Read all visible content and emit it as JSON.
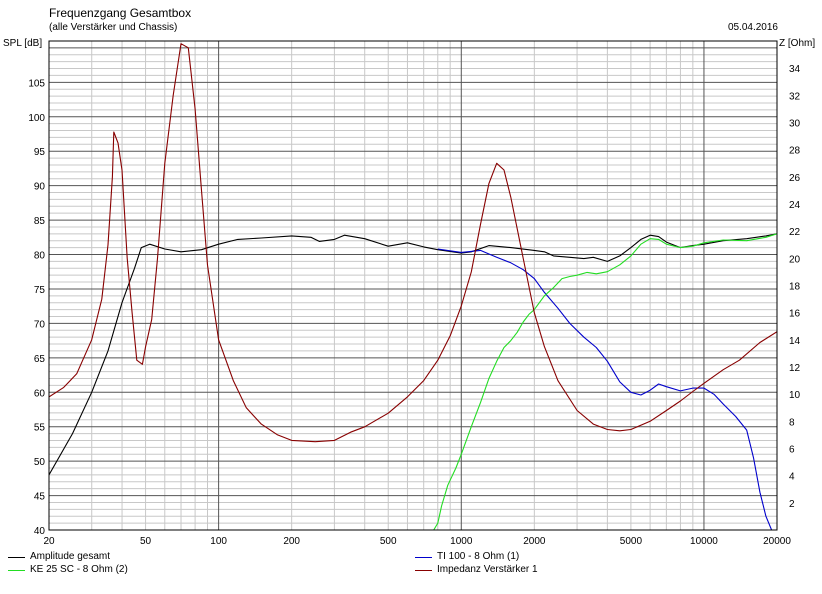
{
  "header": {
    "title": "Frequenzgang Gesamtbox",
    "subtitle": "(alle Verstärker und Chassis)",
    "date": "05.04.2016",
    "ylabel_left": "SPL [dB]",
    "ylabel_right": "Z [Ohm]"
  },
  "chart_data": {
    "type": "line",
    "x_scale": "log",
    "xlim": [
      20,
      20000
    ],
    "ylim_left": [
      40,
      111
    ],
    "ylim_right": [
      0,
      36
    ],
    "x_ticks": [
      20,
      50,
      100,
      200,
      500,
      1000,
      2000,
      5000,
      10000,
      20000
    ],
    "x_tick_labels": [
      "20",
      "50",
      "100",
      "200",
      "500",
      "1000",
      "2000",
      "5000",
      "10000",
      "20000"
    ],
    "y_left_ticks": [
      40,
      45,
      50,
      55,
      60,
      65,
      70,
      75,
      80,
      85,
      90,
      95,
      100,
      105
    ],
    "y_left_tick_labels": [
      "40",
      "45",
      "50",
      "55",
      "60",
      "65",
      "70",
      "75",
      "80",
      "85",
      "90",
      "95",
      "100",
      "105"
    ],
    "y_right_ticks": [
      2,
      4,
      6,
      8,
      10,
      12,
      14,
      16,
      18,
      20,
      22,
      24,
      26,
      28,
      30,
      32,
      34
    ],
    "y_right_tick_labels": [
      "2",
      "4",
      "6",
      "8",
      "10",
      "12",
      "14",
      "16",
      "18",
      "20",
      "22",
      "24",
      "26",
      "28",
      "30",
      "32",
      "34"
    ],
    "grid": true,
    "legend_position": "bottom",
    "series": [
      {
        "name": "Amplitude gesamt",
        "color": "#000000",
        "axis": "left",
        "points": [
          [
            20,
            48
          ],
          [
            25,
            54
          ],
          [
            30,
            60
          ],
          [
            35,
            66
          ],
          [
            40,
            73
          ],
          [
            45,
            78
          ],
          [
            48,
            81
          ],
          [
            52,
            81.5
          ],
          [
            60,
            80.8
          ],
          [
            70,
            80.4
          ],
          [
            85,
            80.7
          ],
          [
            100,
            81.5
          ],
          [
            120,
            82.2
          ],
          [
            150,
            82.4
          ],
          [
            200,
            82.7
          ],
          [
            240,
            82.5
          ],
          [
            260,
            81.9
          ],
          [
            300,
            82.2
          ],
          [
            330,
            82.8
          ],
          [
            400,
            82.3
          ],
          [
            500,
            81.2
          ],
          [
            600,
            81.7
          ],
          [
            700,
            81.1
          ],
          [
            800,
            80.7
          ],
          [
            1000,
            80.2
          ],
          [
            1100,
            80.4
          ],
          [
            1300,
            81.3
          ],
          [
            1600,
            81
          ],
          [
            2000,
            80.6
          ],
          [
            2200,
            80.4
          ],
          [
            2400,
            79.8
          ],
          [
            2800,
            79.6
          ],
          [
            3200,
            79.4
          ],
          [
            3500,
            79.6
          ],
          [
            4000,
            79
          ],
          [
            4500,
            79.8
          ],
          [
            5000,
            81
          ],
          [
            5500,
            82.2
          ],
          [
            6000,
            82.8
          ],
          [
            6500,
            82.6
          ],
          [
            7000,
            81.8
          ],
          [
            8000,
            81
          ],
          [
            9000,
            81.3
          ],
          [
            10000,
            81.5
          ],
          [
            12000,
            82
          ],
          [
            15000,
            82.3
          ],
          [
            18000,
            82.7
          ],
          [
            20000,
            83
          ]
        ]
      },
      {
        "name": "TI 100 - 8 Ohm (1)",
        "color": "#0000cc",
        "axis": "left",
        "points": [
          [
            800,
            80.8
          ],
          [
            1000,
            80.3
          ],
          [
            1200,
            80.6
          ],
          [
            1400,
            79.6
          ],
          [
            1600,
            78.8
          ],
          [
            1800,
            77.8
          ],
          [
            2000,
            76.5
          ],
          [
            2200,
            74.5
          ],
          [
            2500,
            72.2
          ],
          [
            2800,
            70
          ],
          [
            3200,
            68
          ],
          [
            3600,
            66.5
          ],
          [
            4000,
            64.5
          ],
          [
            4500,
            61.5
          ],
          [
            5000,
            60
          ],
          [
            5500,
            59.6
          ],
          [
            6000,
            60.3
          ],
          [
            6500,
            61.2
          ],
          [
            7000,
            60.8
          ],
          [
            8000,
            60.2
          ],
          [
            9000,
            60.6
          ],
          [
            10000,
            60.6
          ],
          [
            11000,
            59.7
          ],
          [
            12000,
            58.3
          ],
          [
            13500,
            56.5
          ],
          [
            15000,
            54.5
          ],
          [
            16000,
            50.5
          ],
          [
            17000,
            45.5
          ],
          [
            18000,
            42
          ],
          [
            19000,
            40
          ]
        ]
      },
      {
        "name": "KE 25 SC - 8 Ohm (2)",
        "color": "#22dd22",
        "axis": "left",
        "points": [
          [
            20,
            40
          ],
          [
            770,
            40
          ],
          [
            800,
            41
          ],
          [
            830,
            43.5
          ],
          [
            880,
            46.5
          ],
          [
            950,
            49
          ],
          [
            1000,
            51
          ],
          [
            1100,
            55
          ],
          [
            1200,
            58.5
          ],
          [
            1300,
            62
          ],
          [
            1400,
            64.5
          ],
          [
            1500,
            66.5
          ],
          [
            1600,
            67.5
          ],
          [
            1700,
            68.7
          ],
          [
            1800,
            70.2
          ],
          [
            1900,
            71.3
          ],
          [
            2000,
            72
          ],
          [
            2200,
            74
          ],
          [
            2400,
            75.2
          ],
          [
            2600,
            76.5
          ],
          [
            2800,
            76.8
          ],
          [
            3000,
            77
          ],
          [
            3300,
            77.4
          ],
          [
            3600,
            77.2
          ],
          [
            4000,
            77.5
          ],
          [
            4500,
            78.5
          ],
          [
            5000,
            79.8
          ],
          [
            5500,
            81.5
          ],
          [
            6000,
            82.3
          ],
          [
            6500,
            82.2
          ],
          [
            7000,
            81.5
          ],
          [
            8000,
            81
          ],
          [
            9000,
            81.2
          ],
          [
            10000,
            81.7
          ],
          [
            12000,
            82.1
          ],
          [
            15000,
            82
          ],
          [
            18000,
            82.5
          ],
          [
            20000,
            83
          ]
        ]
      },
      {
        "name": "Impedanz Verstärker 1",
        "color": "#880000",
        "axis": "right",
        "points": [
          [
            20,
            9.8
          ],
          [
            23,
            10.5
          ],
          [
            26,
            11.5
          ],
          [
            30,
            14
          ],
          [
            33,
            17
          ],
          [
            35,
            21
          ],
          [
            36.5,
            26
          ],
          [
            37,
            29.3
          ],
          [
            38.5,
            28.5
          ],
          [
            40,
            26.5
          ],
          [
            42,
            20
          ],
          [
            44,
            16
          ],
          [
            46,
            12.5
          ],
          [
            48.5,
            12.2
          ],
          [
            50,
            13.5
          ],
          [
            53,
            15.5
          ],
          [
            56,
            20
          ],
          [
            60,
            27
          ],
          [
            65,
            32
          ],
          [
            70,
            35.8
          ],
          [
            75,
            35.5
          ],
          [
            80,
            31
          ],
          [
            85,
            25
          ],
          [
            90,
            19.5
          ],
          [
            100,
            14
          ],
          [
            115,
            11
          ],
          [
            130,
            9
          ],
          [
            150,
            7.8
          ],
          [
            175,
            7
          ],
          [
            200,
            6.6
          ],
          [
            250,
            6.5
          ],
          [
            300,
            6.6
          ],
          [
            350,
            7.2
          ],
          [
            400,
            7.6
          ],
          [
            500,
            8.6
          ],
          [
            600,
            9.8
          ],
          [
            700,
            11
          ],
          [
            800,
            12.5
          ],
          [
            900,
            14.3
          ],
          [
            1000,
            16.5
          ],
          [
            1100,
            19
          ],
          [
            1200,
            22.5
          ],
          [
            1300,
            25.5
          ],
          [
            1400,
            27
          ],
          [
            1500,
            26.5
          ],
          [
            1600,
            24.5
          ],
          [
            1800,
            20
          ],
          [
            2000,
            16
          ],
          [
            2200,
            13.5
          ],
          [
            2500,
            11
          ],
          [
            3000,
            8.8
          ],
          [
            3500,
            7.8
          ],
          [
            4000,
            7.4
          ],
          [
            4500,
            7.3
          ],
          [
            5000,
            7.4
          ],
          [
            6000,
            8
          ],
          [
            7000,
            8.8
          ],
          [
            8000,
            9.5
          ],
          [
            9000,
            10.2
          ],
          [
            10000,
            10.8
          ],
          [
            12000,
            11.8
          ],
          [
            14000,
            12.5
          ],
          [
            17000,
            13.8
          ],
          [
            20000,
            14.6
          ]
        ]
      }
    ]
  }
}
